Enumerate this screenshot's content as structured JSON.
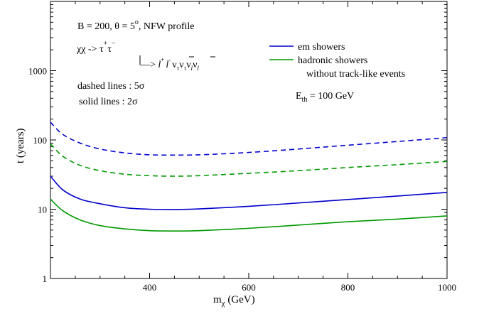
{
  "chart_data": {
    "type": "line",
    "xlabel": "m",
    "xlabel_sub": "χ",
    "xlabel_unit": " (GeV)",
    "ylabel": "t (years)",
    "xlim": [
      200,
      1000
    ],
    "ylim": [
      1,
      10000
    ],
    "yscale": "log",
    "x_ticks": [
      400,
      600,
      800,
      1000
    ],
    "y_ticks": [
      1,
      10,
      100,
      1000
    ],
    "grid": false,
    "annotations": {
      "params": "B = 200, θ = 5",
      "params_sup": "o",
      "params_rest": ", NFW profile",
      "decay1": "χχ -> τ",
      "decay1_sup1": "+",
      "decay1_mid": "τ",
      "decay1_sup2": "−",
      "decay2_arrow": "—>",
      "decay2_l1": "l",
      "decay2_l1_sup": "+",
      "decay2_l2": "l",
      "decay2_l2_sup": "-",
      "decay2_nu1": "ν",
      "decay2_nu1_sub": "τ",
      "decay2_nu2": "ν",
      "decay2_nu2_sub": "τ",
      "decay2_nu3": "ν",
      "decay2_nu3_sub": "l",
      "decay2_nu4": "ν",
      "decay2_nu4_sub": "l",
      "dashed_note": "dashed lines : 5σ",
      "solid_note": "solid lines : 2σ",
      "eth_main": "E",
      "eth_sub": "th",
      "eth_rest": " = 100 GeV"
    },
    "legend": {
      "placement": "top-right",
      "entries": [
        {
          "label": "em showers",
          "color": "#0000cc"
        },
        {
          "label": "hadronic showers",
          "label2": "without track-like events",
          "color": "#009900"
        }
      ]
    },
    "series": [
      {
        "shower": "em",
        "significance": "5σ",
        "style": "dashed",
        "color": "#0000cc",
        "x": [
          200,
          225,
          260,
          300,
          350,
          400,
          450,
          500,
          600,
          700,
          800,
          900,
          1000
        ],
        "y": [
          180,
          120,
          90,
          74,
          65,
          61,
          60.5,
          61,
          66,
          74,
          84,
          95,
          108
        ]
      },
      {
        "shower": "hadronic",
        "significance": "5σ",
        "style": "dashed",
        "color": "#009900",
        "x": [
          200,
          225,
          260,
          300,
          350,
          400,
          450,
          500,
          600,
          700,
          800,
          900,
          1000
        ],
        "y": [
          88,
          58,
          43,
          36,
          32,
          30.5,
          30,
          30.5,
          33,
          36,
          40,
          44,
          49
        ]
      },
      {
        "shower": "em",
        "significance": "2σ",
        "style": "solid",
        "color": "#0000cc",
        "x": [
          200,
          225,
          260,
          300,
          350,
          400,
          450,
          500,
          600,
          700,
          800,
          900,
          1000
        ],
        "y": [
          30,
          19,
          14,
          12,
          10.5,
          10,
          9.9,
          10.1,
          11,
          12.3,
          13.8,
          15.5,
          17.5
        ]
      },
      {
        "shower": "hadronic",
        "significance": "2σ",
        "style": "solid",
        "color": "#009900",
        "x": [
          200,
          225,
          260,
          300,
          350,
          400,
          450,
          500,
          600,
          700,
          800,
          900,
          1000
        ],
        "y": [
          14,
          9.5,
          7,
          5.8,
          5.2,
          4.9,
          4.85,
          4.9,
          5.3,
          5.9,
          6.6,
          7.2,
          8
        ]
      }
    ]
  }
}
